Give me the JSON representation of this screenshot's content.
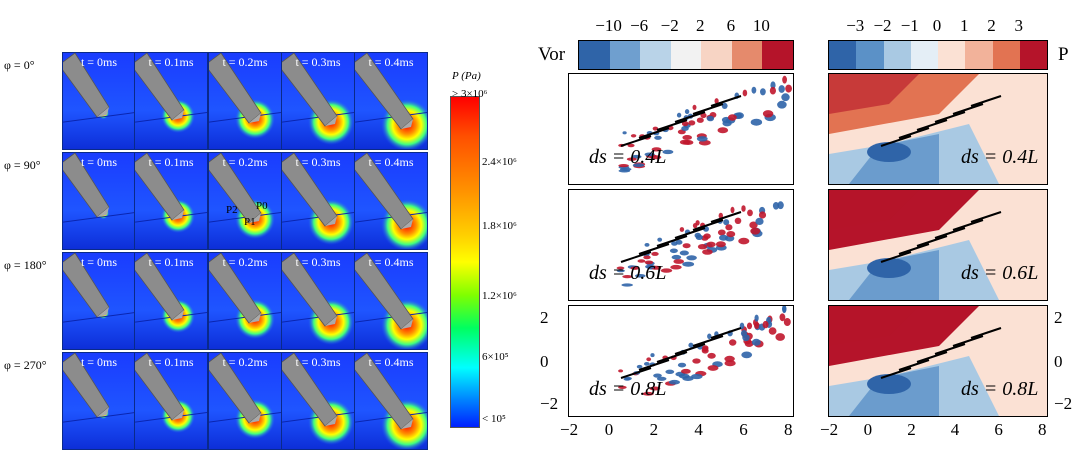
{
  "left_figure": {
    "rows": [
      {
        "label": "φ = 0°",
        "times": [
          "t = 0ms",
          "t = 0.1ms",
          "t = 0.2ms",
          "t = 0.3ms",
          "t = 0.4ms"
        ]
      },
      {
        "label": "φ = 90°",
        "times": [
          "t = 0ms",
          "t = 0.1ms",
          "t = 0.2ms",
          "t = 0.3ms",
          "t = 0.4ms"
        ]
      },
      {
        "label": "φ = 180°",
        "times": [
          "t = 0ms",
          "t = 0.1ms",
          "t = 0.2ms",
          "t = 0.3ms",
          "t = 0.4ms"
        ]
      },
      {
        "label": "φ = 270°",
        "times": [
          "t = 0ms",
          "t = 0.1ms",
          "t = 0.2ms",
          "t = 0.3ms",
          "t = 0.4ms"
        ]
      }
    ],
    "probe_labels": [
      "P2",
      "P0",
      "P1"
    ],
    "colorbar": {
      "title": "P (Pa)",
      "ticks": [
        "> 3×10⁶",
        "2.4×10⁶",
        "1.8×10⁶",
        "1.2×10⁶",
        "6×10⁵",
        "< 10⁵"
      ],
      "colors": [
        "#ff0000",
        "#ff8000",
        "#ffff00",
        "#00ff40",
        "#00ffff",
        "#0040ff"
      ]
    }
  },
  "right_figure": {
    "vor_label": "Vor",
    "p_label": "P",
    "vor_ticks": [
      "−10",
      "−6",
      "−2",
      "2",
      "6",
      "10"
    ],
    "p_ticks": [
      "−3",
      "−2",
      "−1",
      "0",
      "1",
      "2",
      "3"
    ],
    "vor_colors": [
      "#2f64a8",
      "#6f9fcf",
      "#b9d3e8",
      "#f2f2f2",
      "#f7d4c4",
      "#e58a6c",
      "#b5142a"
    ],
    "p_colors": [
      "#2f64a8",
      "#5b91c7",
      "#a9c9e3",
      "#e4eef6",
      "#fbe1d4",
      "#f2b29a",
      "#e27352",
      "#b5142a"
    ],
    "spacing_labels": [
      "ds = 0.4L",
      "ds = 0.6L",
      "ds = 0.8L"
    ],
    "x_ticks": [
      "−2",
      "0",
      "2",
      "4",
      "6",
      "8"
    ],
    "y_ticks": [
      "2",
      "0",
      "−2"
    ]
  }
}
